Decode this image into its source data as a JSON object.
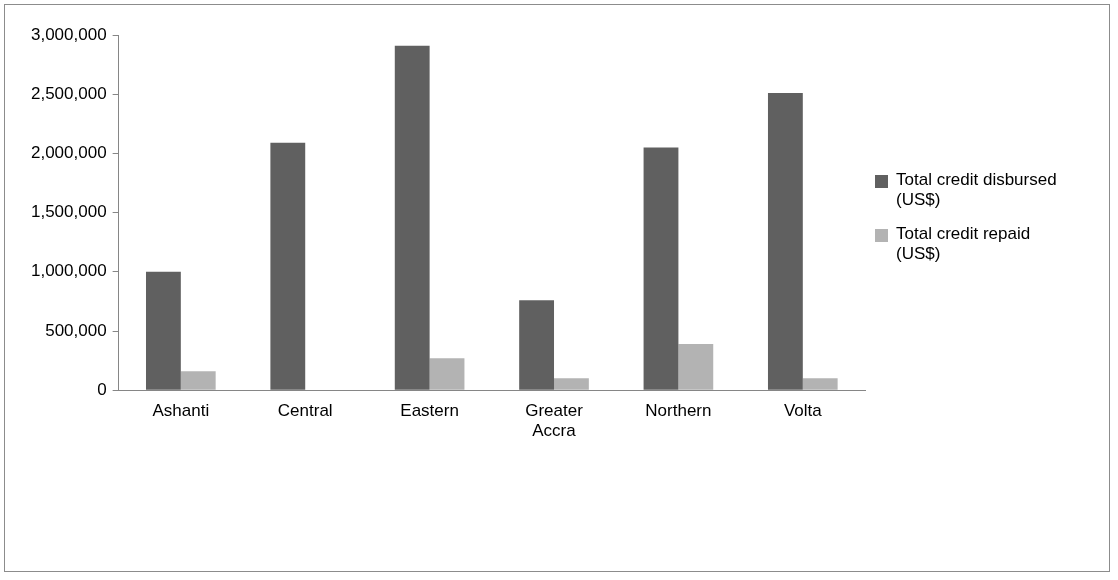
{
  "chart_data": {
    "type": "bar",
    "categories": [
      "Ashanti",
      "Central",
      "Eastern",
      "Greater Accra",
      "Northern",
      "Volta"
    ],
    "series": [
      {
        "name": "Total credit disbursed (US$)",
        "color": "#606060",
        "values": [
          1000000,
          2090000,
          2910000,
          760000,
          2050000,
          2510000
        ]
      },
      {
        "name": "Total credit repaid (US$)",
        "color": "#b3b3b3",
        "values": [
          160000,
          null,
          270000,
          100000,
          390000,
          100000
        ]
      }
    ],
    "ylim": [
      0,
      3000000
    ],
    "yticks": [
      {
        "value": 0,
        "label": "0"
      },
      {
        "value": 500000,
        "label": "500,000"
      },
      {
        "value": 1000000,
        "label": "1,000,000"
      },
      {
        "value": 1500000,
        "label": "1,500,000"
      },
      {
        "value": 2000000,
        "label": "2,000,000"
      },
      {
        "value": 2500000,
        "label": "2,500,000"
      },
      {
        "value": 3000000,
        "label": "3,000,000"
      }
    ],
    "grid": false,
    "legend": "right"
  }
}
